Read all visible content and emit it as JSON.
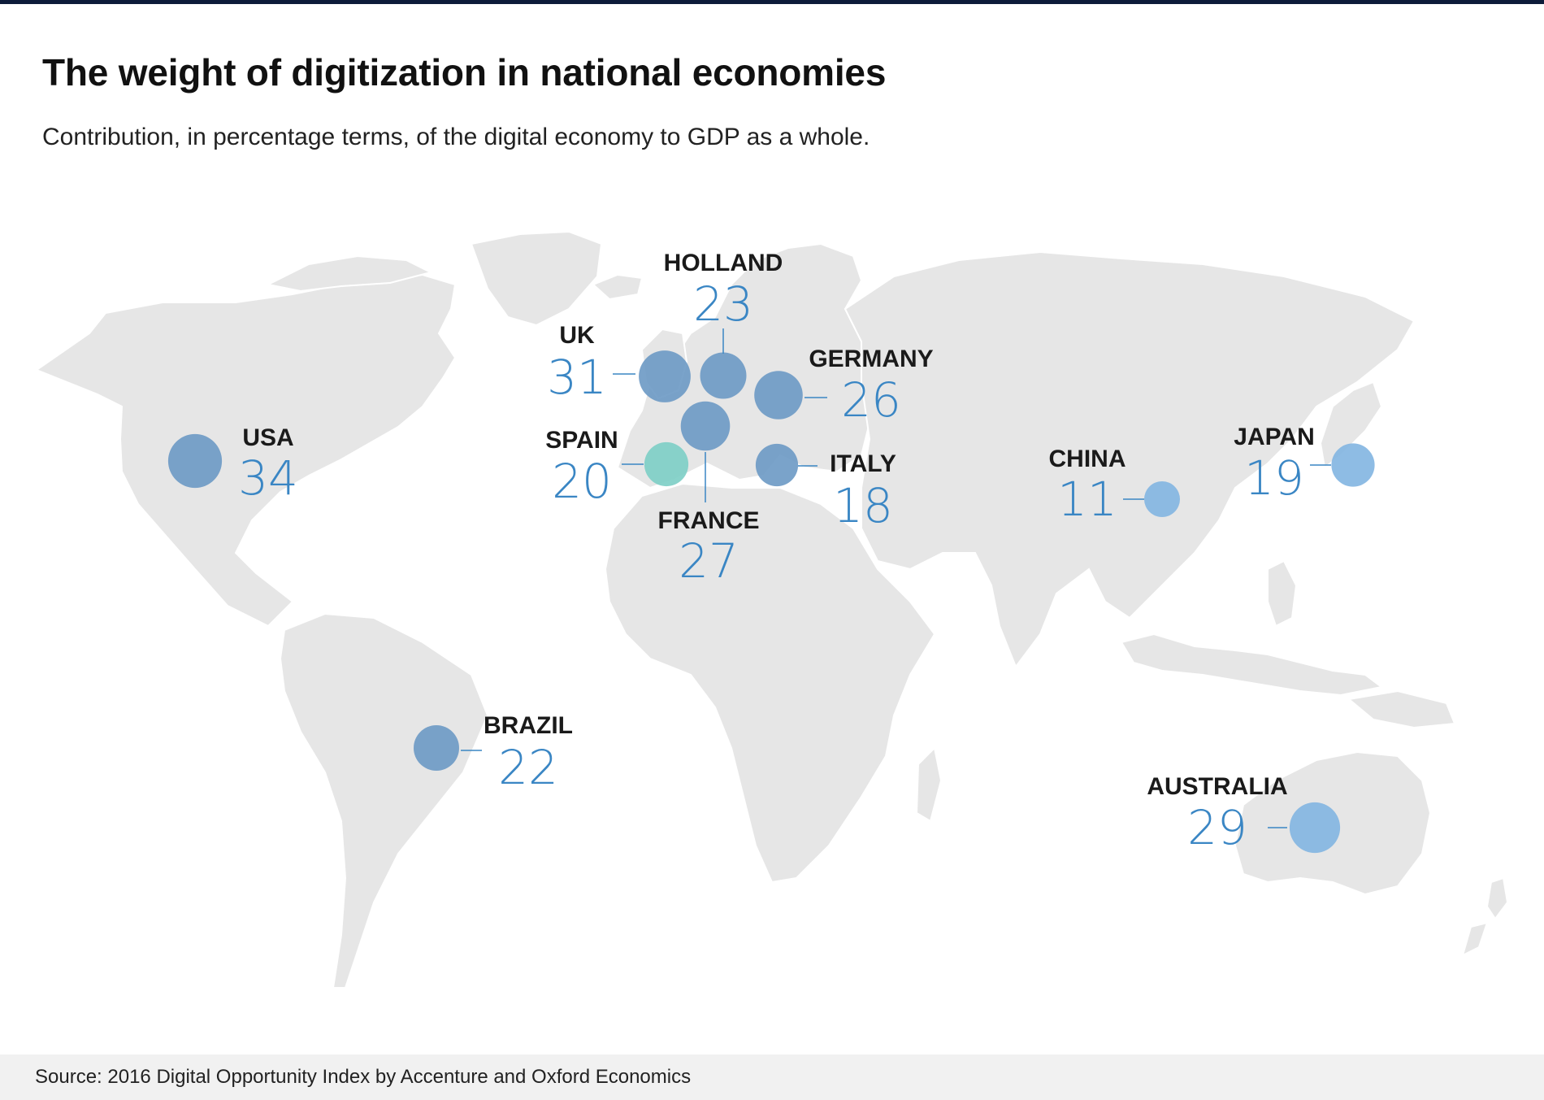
{
  "header": {
    "title": "The weight of digitization in national economies",
    "subtitle": "Contribution, in percentage terms, of the digital economy to GDP as a whole."
  },
  "footer": {
    "source": "Source: 2016 Digital Opportunity Index by Accenture and Oxford Economics"
  },
  "colors": {
    "land": "#e6e6e6",
    "bubble_dark": "#6f9bc6",
    "bubble_light": "#84b6e2",
    "bubble_spain": "#7fcfc7",
    "value_text": "#3a86c4",
    "top_bar": "#0d1c3a"
  },
  "chart_data": {
    "type": "bubble-map",
    "title": "The weight of digitization in national economies",
    "unit": "% of GDP",
    "points": [
      {
        "name": "USA",
        "value": 34,
        "color": "#6f9bc6"
      },
      {
        "name": "UK",
        "value": 31,
        "color": "#6f9bc6"
      },
      {
        "name": "HOLLAND",
        "value": 23,
        "color": "#6f9bc6"
      },
      {
        "name": "GERMANY",
        "value": 26,
        "color": "#6f9bc6"
      },
      {
        "name": "FRANCE",
        "value": 27,
        "color": "#6f9bc6"
      },
      {
        "name": "SPAIN",
        "value": 20,
        "color": "#7fcfc7"
      },
      {
        "name": "ITALY",
        "value": 18,
        "color": "#6f9bc6"
      },
      {
        "name": "CHINA",
        "value": 11,
        "color": "#84b6e2"
      },
      {
        "name": "JAPAN",
        "value": 19,
        "color": "#84b6e2"
      },
      {
        "name": "BRAZIL",
        "value": 22,
        "color": "#6f9bc6"
      },
      {
        "name": "AUSTRALIA",
        "value": 29,
        "color": "#84b6e2"
      }
    ]
  }
}
